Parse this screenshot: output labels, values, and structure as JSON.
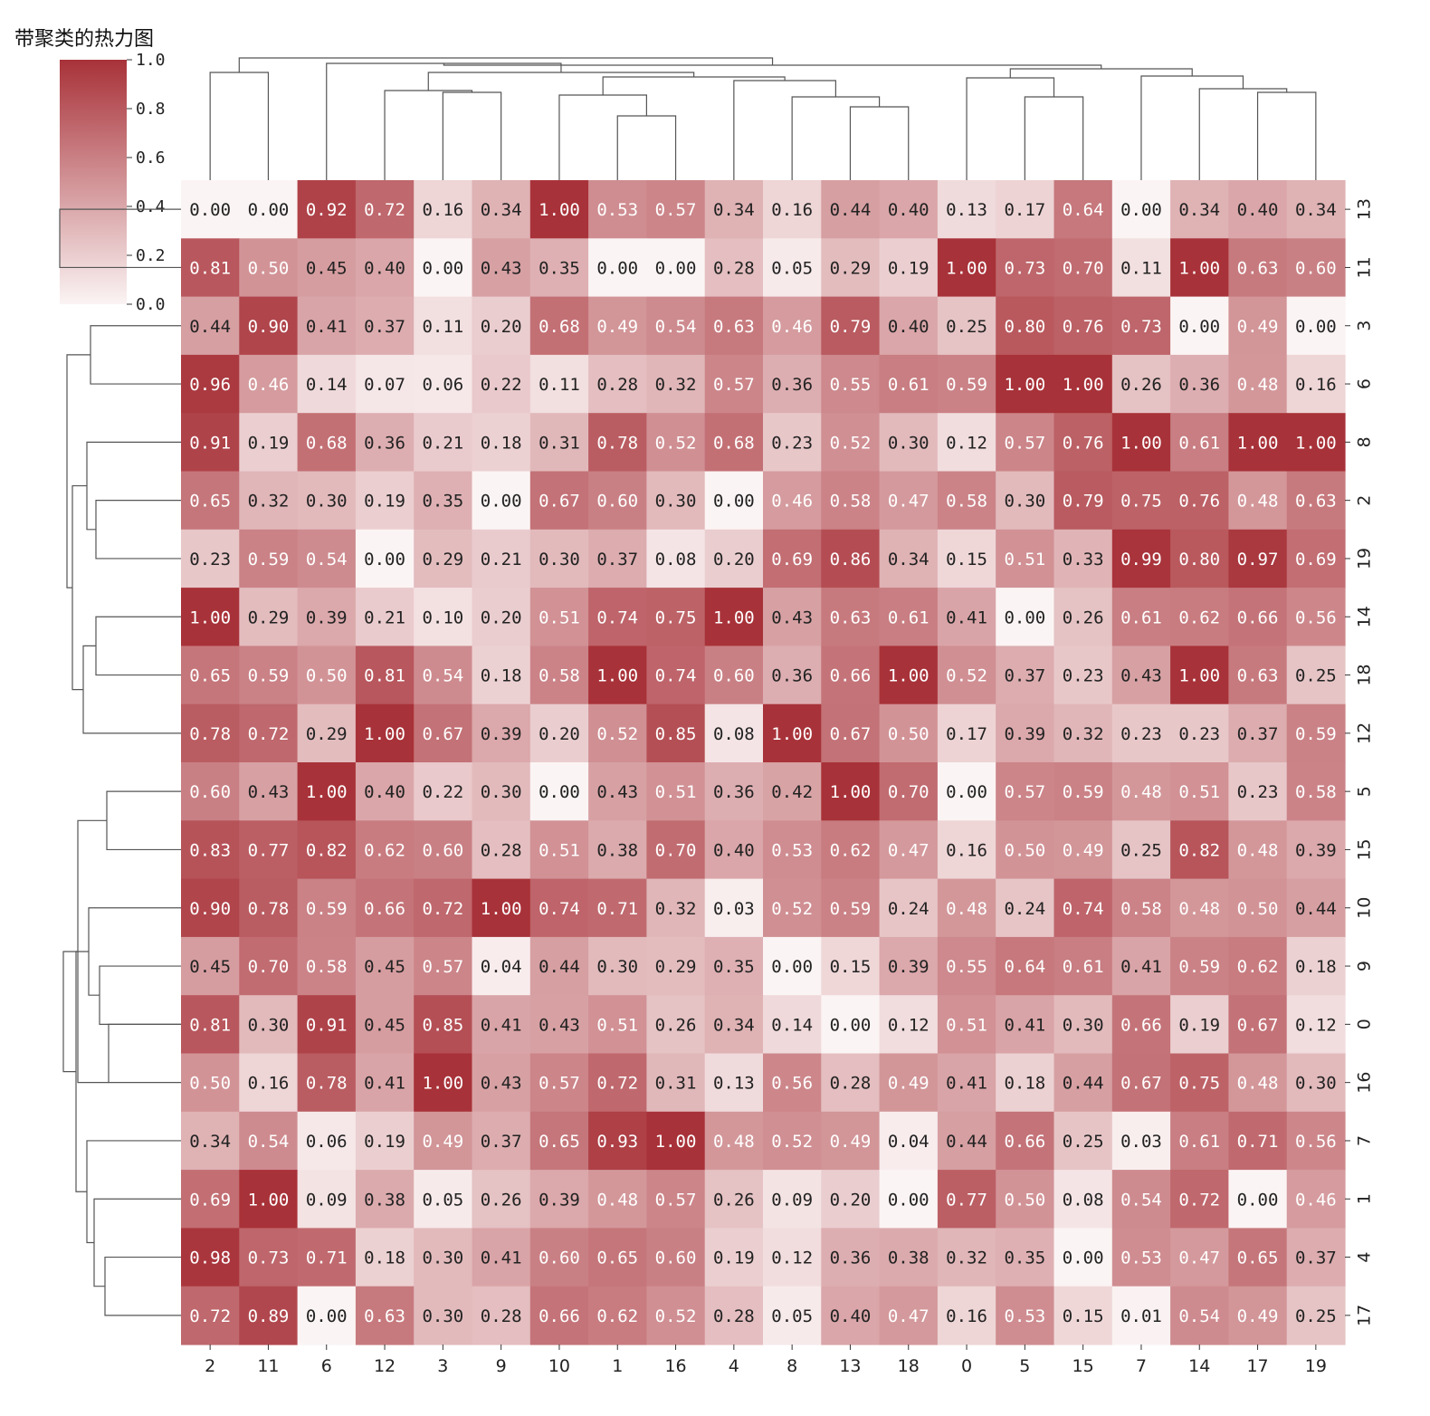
{
  "chart_data": {
    "type": "heatmap",
    "title": "带聚类的热力图",
    "col_labels": [
      "2",
      "11",
      "6",
      "12",
      "3",
      "9",
      "10",
      "1",
      "16",
      "4",
      "8",
      "13",
      "18",
      "0",
      "5",
      "15",
      "7",
      "14",
      "17",
      "19"
    ],
    "row_labels": [
      "13",
      "11",
      "3",
      "6",
      "8",
      "2",
      "19",
      "14",
      "18",
      "12",
      "5",
      "15",
      "10",
      "9",
      "0",
      "16",
      "7",
      "1",
      "4",
      "17"
    ],
    "values": [
      [
        0.0,
        0.0,
        0.92,
        0.72,
        0.16,
        0.34,
        1.0,
        0.53,
        0.57,
        0.34,
        0.16,
        0.44,
        0.4,
        0.13,
        0.17,
        0.64,
        0.0,
        0.34,
        0.4,
        0.34
      ],
      [
        0.81,
        0.5,
        0.45,
        0.4,
        0.0,
        0.43,
        0.35,
        0.0,
        0.0,
        0.28,
        0.05,
        0.29,
        0.19,
        1.0,
        0.73,
        0.7,
        0.11,
        1.0,
        0.63,
        0.6
      ],
      [
        0.44,
        0.9,
        0.41,
        0.37,
        0.11,
        0.2,
        0.68,
        0.49,
        0.54,
        0.63,
        0.46,
        0.79,
        0.4,
        0.25,
        0.8,
        0.76,
        0.73,
        0.0,
        0.49,
        0.0
      ],
      [
        0.96,
        0.46,
        0.14,
        0.07,
        0.06,
        0.22,
        0.11,
        0.28,
        0.32,
        0.57,
        0.36,
        0.55,
        0.61,
        0.59,
        1.0,
        1.0,
        0.26,
        0.36,
        0.48,
        0.16
      ],
      [
        0.91,
        0.19,
        0.68,
        0.36,
        0.21,
        0.18,
        0.31,
        0.78,
        0.52,
        0.68,
        0.23,
        0.52,
        0.3,
        0.12,
        0.57,
        0.76,
        1.0,
        0.61,
        1.0,
        1.0
      ],
      [
        0.65,
        0.32,
        0.3,
        0.19,
        0.35,
        0.0,
        0.67,
        0.6,
        0.3,
        0.0,
        0.46,
        0.58,
        0.47,
        0.58,
        0.3,
        0.79,
        0.75,
        0.76,
        0.48,
        0.63
      ],
      [
        0.23,
        0.59,
        0.54,
        0.0,
        0.29,
        0.21,
        0.3,
        0.37,
        0.08,
        0.2,
        0.69,
        0.86,
        0.34,
        0.15,
        0.51,
        0.33,
        0.99,
        0.8,
        0.97,
        0.69
      ],
      [
        1.0,
        0.29,
        0.39,
        0.21,
        0.1,
        0.2,
        0.51,
        0.74,
        0.75,
        1.0,
        0.43,
        0.63,
        0.61,
        0.41,
        0.0,
        0.26,
        0.61,
        0.62,
        0.66,
        0.56
      ],
      [
        0.65,
        0.59,
        0.5,
        0.81,
        0.54,
        0.18,
        0.58,
        1.0,
        0.74,
        0.6,
        0.36,
        0.66,
        1.0,
        0.52,
        0.37,
        0.23,
        0.43,
        1.0,
        0.63,
        0.25
      ],
      [
        0.78,
        0.72,
        0.29,
        1.0,
        0.67,
        0.39,
        0.2,
        0.52,
        0.85,
        0.08,
        1.0,
        0.67,
        0.5,
        0.17,
        0.39,
        0.32,
        0.23,
        0.23,
        0.37,
        0.59
      ],
      [
        0.6,
        0.43,
        1.0,
        0.4,
        0.22,
        0.3,
        0.0,
        0.43,
        0.51,
        0.36,
        0.42,
        1.0,
        0.7,
        0.0,
        0.57,
        0.59,
        0.48,
        0.51,
        0.23,
        0.58
      ],
      [
        0.83,
        0.77,
        0.82,
        0.62,
        0.6,
        0.28,
        0.51,
        0.38,
        0.7,
        0.4,
        0.53,
        0.62,
        0.47,
        0.16,
        0.5,
        0.49,
        0.25,
        0.82,
        0.48,
        0.39
      ],
      [
        0.9,
        0.78,
        0.59,
        0.66,
        0.72,
        1.0,
        0.74,
        0.71,
        0.32,
        0.03,
        0.52,
        0.59,
        0.24,
        0.48,
        0.24,
        0.74,
        0.58,
        0.48,
        0.5,
        0.44
      ],
      [
        0.45,
        0.7,
        0.58,
        0.45,
        0.57,
        0.04,
        0.44,
        0.3,
        0.29,
        0.35,
        0.0,
        0.15,
        0.39,
        0.55,
        0.64,
        0.61,
        0.41,
        0.59,
        0.62,
        0.18
      ],
      [
        0.81,
        0.3,
        0.91,
        0.45,
        0.85,
        0.41,
        0.43,
        0.51,
        0.26,
        0.34,
        0.14,
        0.0,
        0.12,
        0.51,
        0.41,
        0.3,
        0.66,
        0.19,
        0.67,
        0.12
      ],
      [
        0.5,
        0.16,
        0.78,
        0.41,
        1.0,
        0.43,
        0.57,
        0.72,
        0.31,
        0.13,
        0.56,
        0.28,
        0.49,
        0.41,
        0.18,
        0.44,
        0.67,
        0.75,
        0.48,
        0.3
      ],
      [
        0.34,
        0.54,
        0.06,
        0.19,
        0.49,
        0.37,
        0.65,
        0.93,
        1.0,
        0.48,
        0.52,
        0.49,
        0.04,
        0.44,
        0.66,
        0.25,
        0.03,
        0.61,
        0.71,
        0.56
      ],
      [
        0.69,
        1.0,
        0.09,
        0.38,
        0.05,
        0.26,
        0.39,
        0.48,
        0.57,
        0.26,
        0.09,
        0.2,
        0.0,
        0.77,
        0.5,
        0.08,
        0.54,
        0.72,
        0.0,
        0.46
      ],
      [
        0.98,
        0.73,
        0.71,
        0.18,
        0.3,
        0.41,
        0.6,
        0.65,
        0.6,
        0.19,
        0.12,
        0.36,
        0.38,
        0.32,
        0.35,
        0.0,
        0.53,
        0.47,
        0.65,
        0.37
      ],
      [
        0.72,
        0.89,
        0.0,
        0.63,
        0.3,
        0.28,
        0.66,
        0.62,
        0.52,
        0.28,
        0.05,
        0.4,
        0.47,
        0.16,
        0.53,
        0.15,
        0.01,
        0.54,
        0.49,
        0.25
      ]
    ],
    "value_format": "0.00",
    "colorbar": {
      "min": 0.0,
      "max": 1.0,
      "ticks": [
        "0.0",
        "0.2",
        "0.4",
        "0.6",
        "0.8",
        "1.0"
      ]
    },
    "colors": {
      "low": "#fbf4f4",
      "high": "#a83239",
      "text_dark": "#222222",
      "text_light": "#ffffff",
      "dendrogram": "#555555"
    },
    "col_dendrogram": true,
    "row_dendrogram": true
  }
}
